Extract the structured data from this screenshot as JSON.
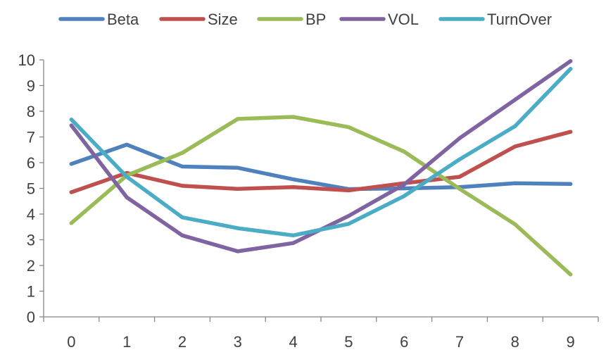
{
  "chart_data": {
    "type": "line",
    "title": "",
    "xlabel": "",
    "ylabel": "",
    "x": [
      0,
      1,
      2,
      3,
      4,
      5,
      6,
      7,
      8,
      9
    ],
    "ylim": [
      0,
      10
    ],
    "yticks": [
      "0",
      "1",
      "2",
      "3",
      "4",
      "5",
      "6",
      "7",
      "8",
      "9",
      "10"
    ],
    "xticks": [
      "0",
      "1",
      "2",
      "3",
      "4",
      "5",
      "6",
      "7",
      "8",
      "9"
    ],
    "grid": false,
    "legend": "top",
    "series": [
      {
        "name": "Beta",
        "color": "#4F81BD",
        "values": [
          5.95,
          6.7,
          5.85,
          5.8,
          5.35,
          4.97,
          5.0,
          5.05,
          5.2,
          5.17
        ]
      },
      {
        "name": "Size",
        "color": "#C0504D",
        "values": [
          4.85,
          5.6,
          5.1,
          4.98,
          5.05,
          4.92,
          5.2,
          5.45,
          6.63,
          7.2
        ]
      },
      {
        "name": "BP",
        "color": "#9BBB59",
        "values": [
          3.65,
          5.5,
          6.38,
          7.7,
          7.78,
          7.38,
          6.43,
          4.98,
          3.6,
          1.65
        ]
      },
      {
        "name": "VOL",
        "color": "#8064A2",
        "values": [
          7.45,
          4.65,
          3.17,
          2.55,
          2.87,
          3.93,
          5.15,
          6.95,
          8.45,
          9.95
        ]
      },
      {
        "name": "TurnOver",
        "color": "#4BACC6",
        "values": [
          7.68,
          5.45,
          3.87,
          3.45,
          3.17,
          3.62,
          4.7,
          6.13,
          7.42,
          9.65
        ]
      }
    ]
  }
}
